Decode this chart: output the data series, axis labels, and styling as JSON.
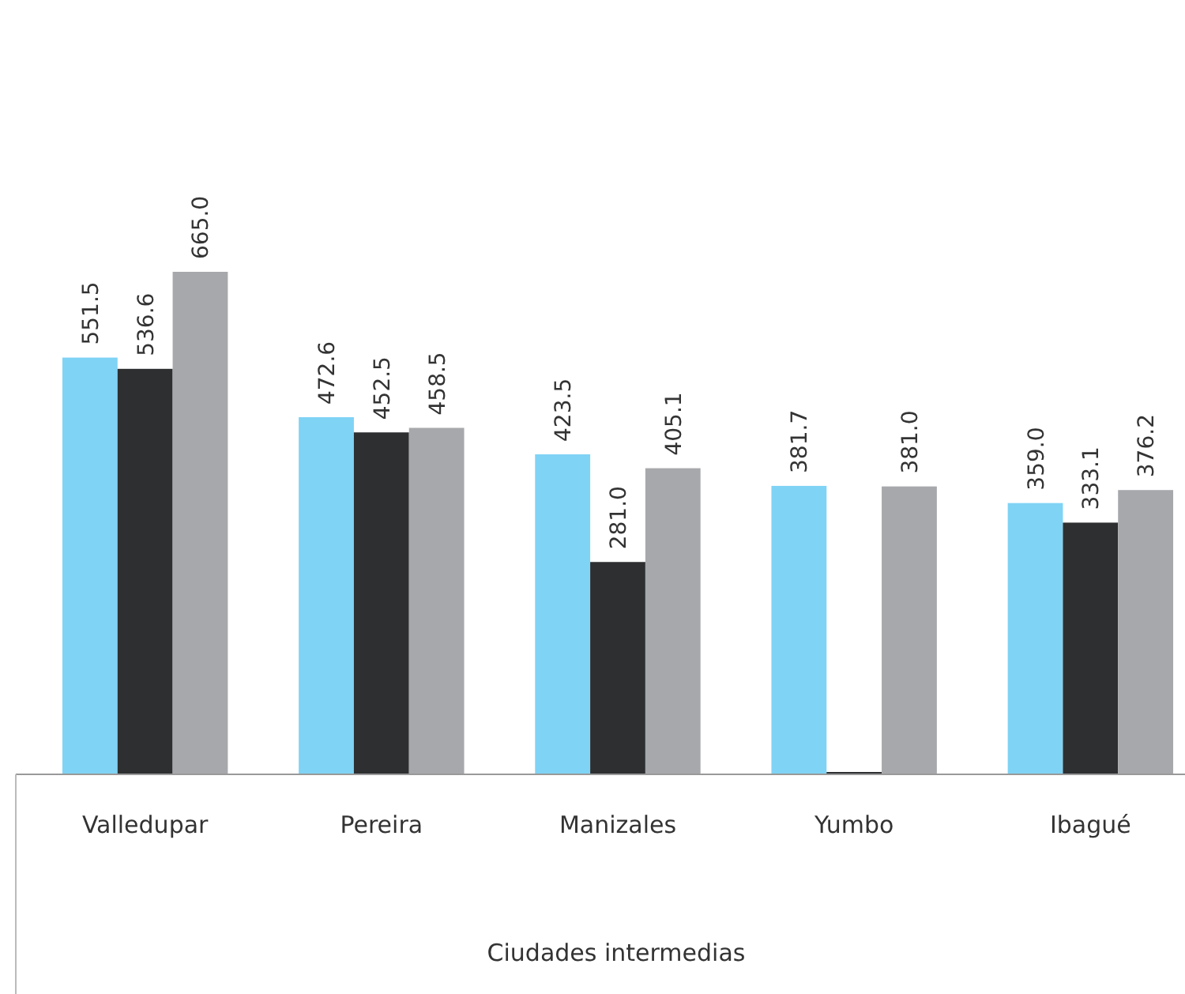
{
  "chart_data": {
    "type": "bar",
    "xlabel": "Ciudades intermedias",
    "categories": [
      "Valledupar",
      "Pereira",
      "Manizales",
      "Yumbo",
      "Ibagué"
    ],
    "series": [
      {
        "color": "#7fd3f5",
        "values": [
          551.5,
          472.6,
          423.5,
          381.7,
          359.0
        ],
        "value_labels": [
          "551.5",
          "472.6",
          "423.5",
          "381.7",
          "359.0"
        ]
      },
      {
        "color": "#2d2f31",
        "values": [
          536.6,
          452.5,
          281.0,
          0,
          333.1
        ],
        "value_labels": [
          "536.6",
          "452.5",
          "281.0",
          null,
          "333.1"
        ]
      },
      {
        "color": "#a7a8ab",
        "values": [
          665.0,
          458.5,
          405.1,
          381.0,
          376.2
        ],
        "value_labels": [
          "665.0",
          "458.5",
          "405.1",
          "381.0",
          "376.2"
        ]
      }
    ],
    "tick_labels": "x"
  }
}
